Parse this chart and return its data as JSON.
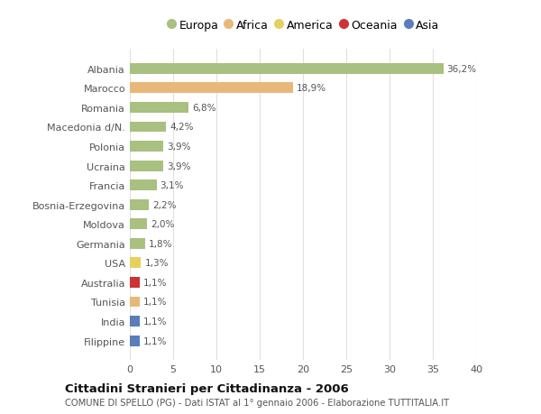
{
  "categories": [
    "Albania",
    "Marocco",
    "Romania",
    "Macedonia d/N.",
    "Polonia",
    "Ucraina",
    "Francia",
    "Bosnia-Erzegovina",
    "Moldova",
    "Germania",
    "USA",
    "Australia",
    "Tunisia",
    "India",
    "Filippine"
  ],
  "values": [
    36.2,
    18.9,
    6.8,
    4.2,
    3.9,
    3.9,
    3.1,
    2.2,
    2.0,
    1.8,
    1.3,
    1.1,
    1.1,
    1.1,
    1.1
  ],
  "labels": [
    "36,2%",
    "18,9%",
    "6,8%",
    "4,2%",
    "3,9%",
    "3,9%",
    "3,1%",
    "2,2%",
    "2,0%",
    "1,8%",
    "1,3%",
    "1,1%",
    "1,1%",
    "1,1%",
    "1,1%"
  ],
  "bar_colors": [
    "#a8c080",
    "#e8b87a",
    "#a8c080",
    "#a8c080",
    "#a8c080",
    "#a8c080",
    "#a8c080",
    "#a8c080",
    "#a8c080",
    "#a8c080",
    "#e8d060",
    "#cc3333",
    "#e8b87a",
    "#5b7db8",
    "#5b7db8"
  ],
  "legend_labels": [
    "Europa",
    "Africa",
    "America",
    "Oceania",
    "Asia"
  ],
  "legend_colors": [
    "#a8c080",
    "#e8b87a",
    "#e8d060",
    "#cc3333",
    "#5b7db8"
  ],
  "title": "Cittadini Stranieri per Cittadinanza - 2006",
  "subtitle": "COMUNE DI SPELLO (PG) - Dati ISTAT al 1° gennaio 2006 - Elaborazione TUTTITALIA.IT",
  "xlim": [
    0,
    40
  ],
  "xticks": [
    0,
    5,
    10,
    15,
    20,
    25,
    30,
    35,
    40
  ],
  "background_color": "#ffffff",
  "plot_bg_color": "#ffffff",
  "grid_color": "#e0e0e0"
}
